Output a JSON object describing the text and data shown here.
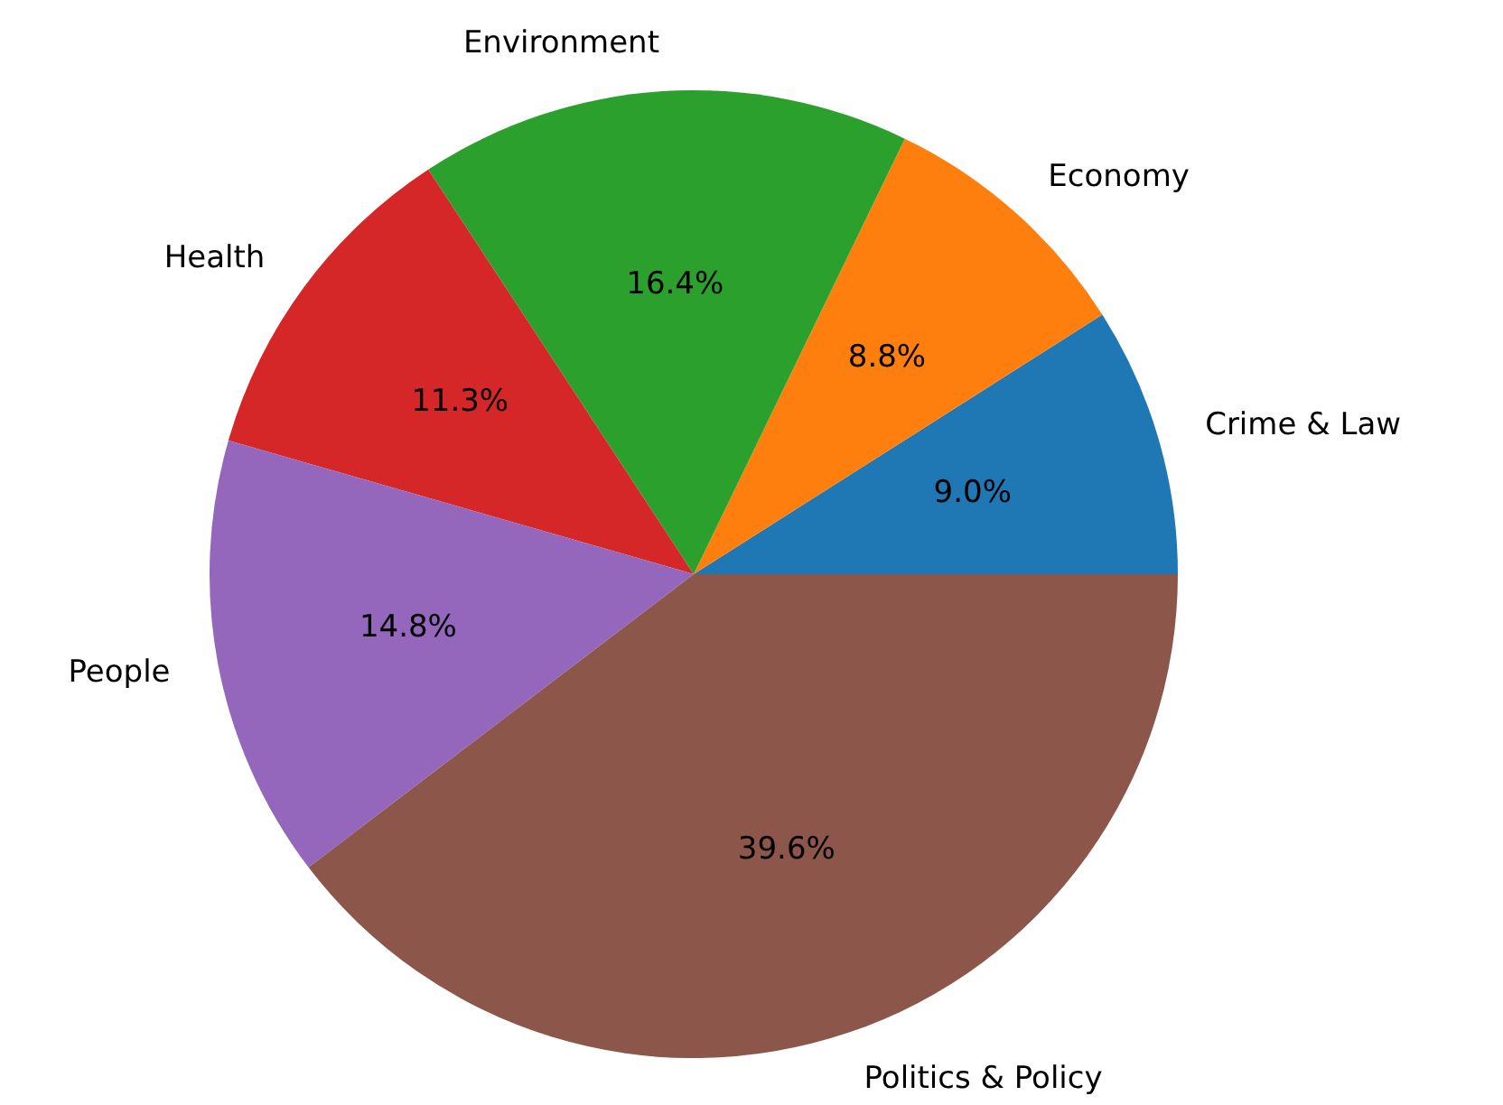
{
  "chart_data": {
    "type": "pie",
    "categories": [
      "Crime & Law",
      "Economy",
      "Environment",
      "Health",
      "People",
      "Politics & Policy"
    ],
    "values": [
      9.0,
      8.8,
      16.4,
      11.3,
      14.8,
      39.6
    ],
    "value_labels": [
      "9.0%",
      "8.8%",
      "16.4%",
      "11.3%",
      "14.8%",
      "39.6%"
    ],
    "colors": [
      "#1f77b4",
      "#ff7f0e",
      "#2ca02c",
      "#d62728",
      "#9467bd",
      "#8c564b"
    ]
  }
}
